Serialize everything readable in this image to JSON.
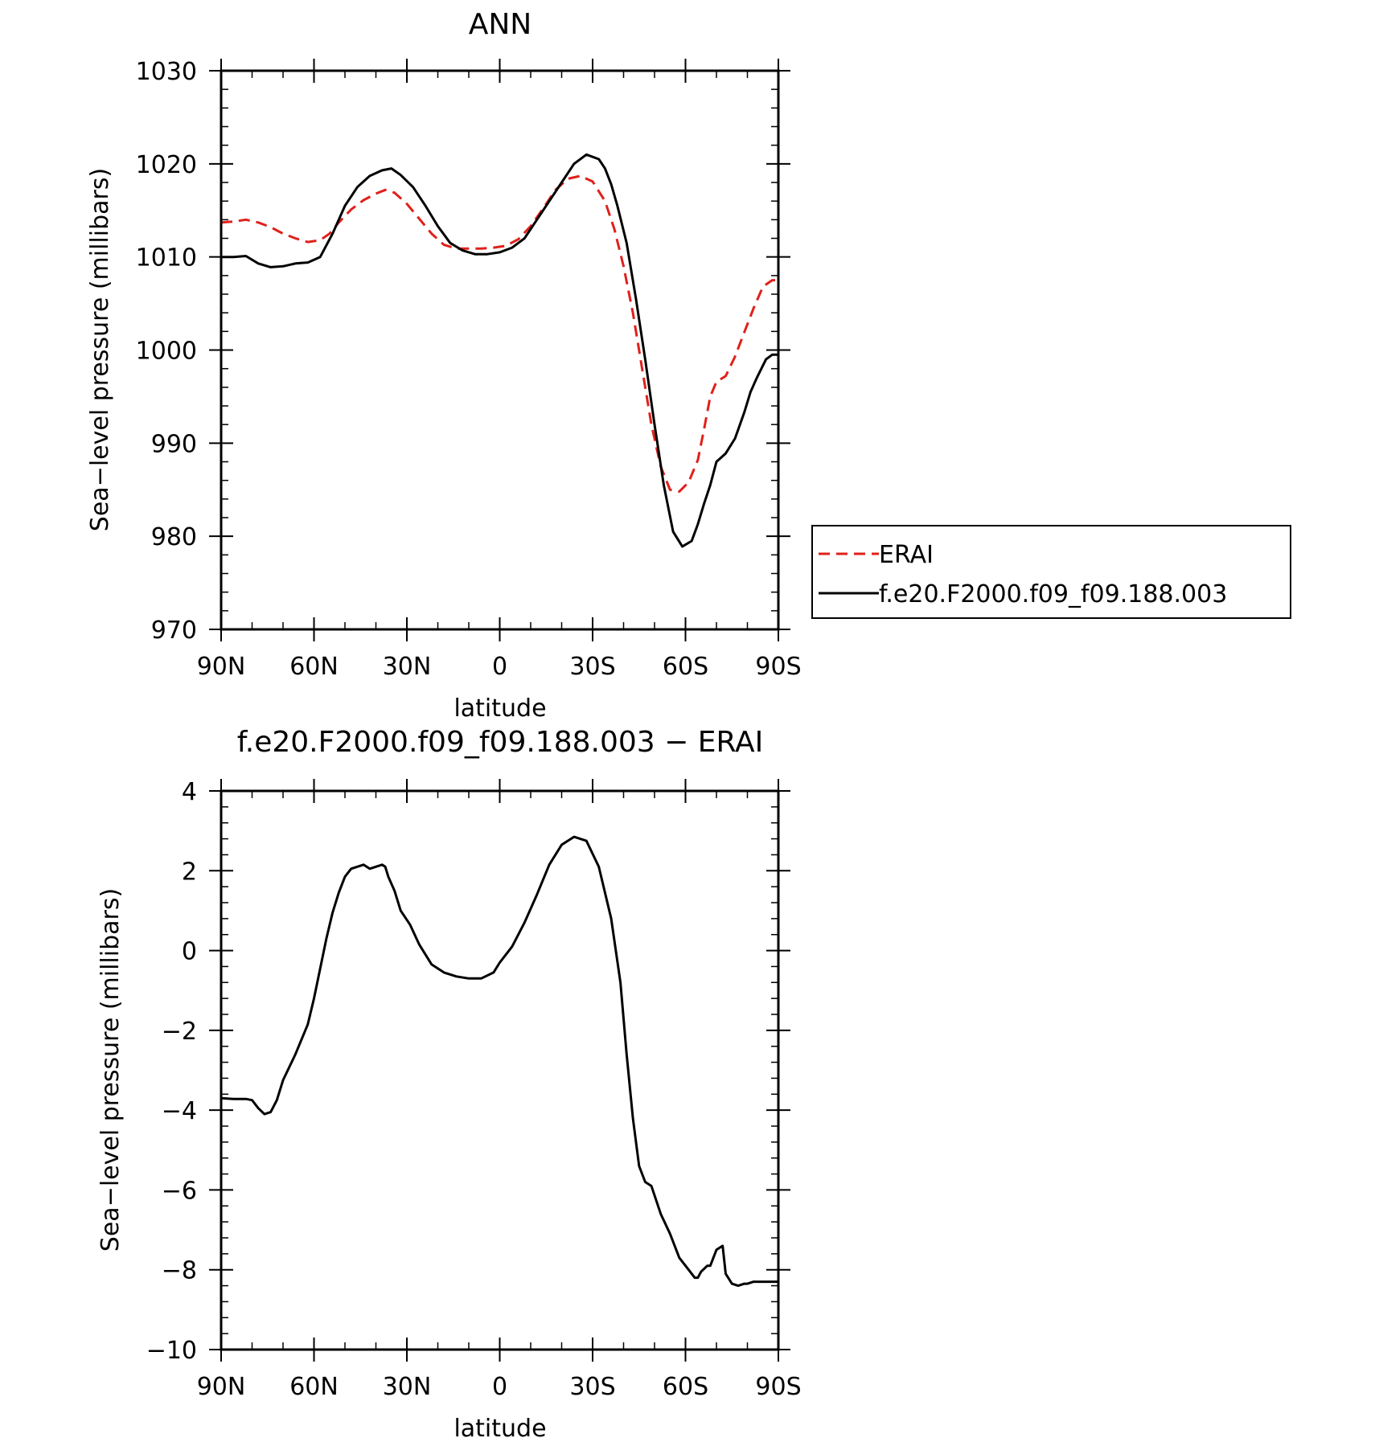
{
  "colors": {
    "erai": "#e0201a",
    "model": "#000000"
  },
  "chart_data": [
    {
      "type": "line",
      "title": "ANN",
      "xlabel": "latitude",
      "ylabel": "Sea−level pressure (millibars)",
      "x_tick_labels": [
        "90N",
        "60N",
        "30N",
        "0",
        "30S",
        "60S",
        "90S"
      ],
      "y_tick_labels": [
        "970",
        "980",
        "990",
        "1000",
        "1010",
        "1020",
        "1030"
      ],
      "xlim": [
        90,
        -90
      ],
      "ylim": [
        970,
        1030
      ],
      "legend_placement": "right",
      "series": [
        {
          "name": "ERAI",
          "style": "dashed",
          "color": "#e0201a",
          "x": [
            90,
            86,
            82,
            78,
            74,
            70,
            66,
            62,
            58,
            55,
            52,
            48,
            44,
            40,
            37,
            34,
            30,
            26,
            22,
            18,
            14,
            10,
            6,
            2,
            -2,
            -6,
            -10,
            -14,
            -18,
            -22,
            -26,
            -30,
            -34,
            -37,
            -40,
            -43,
            -46,
            -49,
            -52,
            -55,
            -58,
            -61,
            -64,
            -66,
            -68,
            -70,
            -73,
            -76,
            -79,
            -82,
            -85,
            -88,
            -90
          ],
          "y": [
            1013.7,
            1013.8,
            1014.0,
            1013.7,
            1013.2,
            1012.5,
            1012.0,
            1011.6,
            1011.8,
            1012.5,
            1013.7,
            1015.1,
            1016.1,
            1016.8,
            1017.2,
            1016.9,
            1015.7,
            1014.1,
            1012.5,
            1011.3,
            1010.9,
            1010.9,
            1010.9,
            1011.0,
            1011.2,
            1011.9,
            1013.3,
            1015.2,
            1017.2,
            1018.4,
            1018.7,
            1018.1,
            1016.0,
            1013.0,
            1009.0,
            1004.0,
            998.0,
            992.0,
            987.5,
            985.0,
            984.8,
            985.8,
            988.2,
            991.5,
            995.0,
            996.6,
            997.2,
            999.3,
            1001.9,
            1004.5,
            1006.8,
            1007.5,
            1007.5
          ]
        },
        {
          "name": "f.e20.F2000.f09_f09.188.003",
          "style": "solid",
          "color": "#000000",
          "x": [
            90,
            86,
            82,
            78,
            74,
            70,
            66,
            62,
            58,
            54,
            50,
            46,
            42,
            38,
            35,
            32,
            28,
            24,
            20,
            16,
            12,
            8,
            4,
            0,
            -4,
            -8,
            -12,
            -16,
            -20,
            -24,
            -28,
            -32,
            -34,
            -36,
            -38,
            -41,
            -44,
            -47,
            -50,
            -53,
            -56,
            -59,
            -62,
            -64,
            -66,
            -68,
            -70,
            -73,
            -76,
            -79,
            -81,
            -83,
            -86,
            -88,
            -90
          ],
          "y": [
            1010.0,
            1010.0,
            1010.1,
            1009.3,
            1008.9,
            1009.0,
            1009.3,
            1009.4,
            1010.0,
            1012.5,
            1015.5,
            1017.5,
            1018.7,
            1019.3,
            1019.5,
            1018.8,
            1017.5,
            1015.5,
            1013.3,
            1011.5,
            1010.7,
            1010.3,
            1010.3,
            1010.5,
            1011.0,
            1012.0,
            1014.0,
            1016.0,
            1018.0,
            1020.0,
            1021.0,
            1020.5,
            1019.5,
            1017.8,
            1015.5,
            1011.5,
            1005.5,
            999.0,
            992.0,
            985.5,
            980.5,
            978.9,
            979.5,
            981.3,
            983.5,
            985.5,
            988.0,
            988.9,
            990.5,
            993.3,
            995.5,
            997.0,
            999.0,
            999.5,
            999.5
          ]
        }
      ]
    },
    {
      "type": "line",
      "title": "f.e20.F2000.f09_f09.188.003 − ERAI",
      "xlabel": "latitude",
      "ylabel": "Sea−level pressure (millibars)",
      "x_tick_labels": [
        "90N",
        "60N",
        "30N",
        "0",
        "30S",
        "60S",
        "90S"
      ],
      "y_tick_labels": [
        "−10",
        "−8",
        "−6",
        "−4",
        "−2",
        "0",
        "2",
        "4"
      ],
      "xlim": [
        90,
        -90
      ],
      "ylim": [
        -10,
        4
      ],
      "series": [
        {
          "style": "solid",
          "color": "#000000",
          "x": [
            90,
            86,
            82,
            80,
            78,
            76,
            74,
            72,
            70,
            66,
            62,
            60,
            58,
            56,
            54,
            52,
            50,
            48,
            46,
            44,
            42,
            40,
            38,
            37,
            36,
            34,
            32,
            29,
            26,
            22,
            18,
            14,
            10,
            6,
            2,
            0,
            -4,
            -8,
            -12,
            -16,
            -20,
            -24,
            -28,
            -32,
            -36,
            -39,
            -41,
            -43,
            -45,
            -47,
            -49,
            -52,
            -55,
            -58,
            -61,
            -63,
            -64,
            -65,
            -67,
            -68,
            -70,
            -72,
            -73,
            -75,
            -77,
            -79,
            -80,
            -82,
            -83,
            -84,
            -85,
            -86,
            -87,
            -88,
            -89,
            -90
          ],
          "y": [
            -3.7,
            -3.72,
            -3.72,
            -3.75,
            -3.95,
            -4.1,
            -4.05,
            -3.75,
            -3.25,
            -2.6,
            -1.85,
            -1.2,
            -0.45,
            0.3,
            0.95,
            1.45,
            1.85,
            2.05,
            2.1,
            2.15,
            2.05,
            2.1,
            2.15,
            2.1,
            1.85,
            1.5,
            1.0,
            0.65,
            0.15,
            -0.35,
            -0.55,
            -0.65,
            -0.7,
            -0.7,
            -0.55,
            -0.3,
            0.1,
            0.7,
            1.4,
            2.15,
            2.65,
            2.85,
            2.75,
            2.1,
            0.8,
            -0.8,
            -2.6,
            -4.2,
            -5.4,
            -5.8,
            -5.9,
            -6.6,
            -7.1,
            -7.7,
            -8.0,
            -8.2,
            -8.2,
            -8.05,
            -7.9,
            -7.9,
            -7.5,
            -7.4,
            -8.1,
            -8.35,
            -8.4,
            -8.35,
            -8.35,
            -8.3,
            -8.3,
            -8.3,
            -8.3,
            -8.3,
            -8.3,
            -8.3,
            -8.3,
            -8.3
          ]
        }
      ]
    }
  ]
}
